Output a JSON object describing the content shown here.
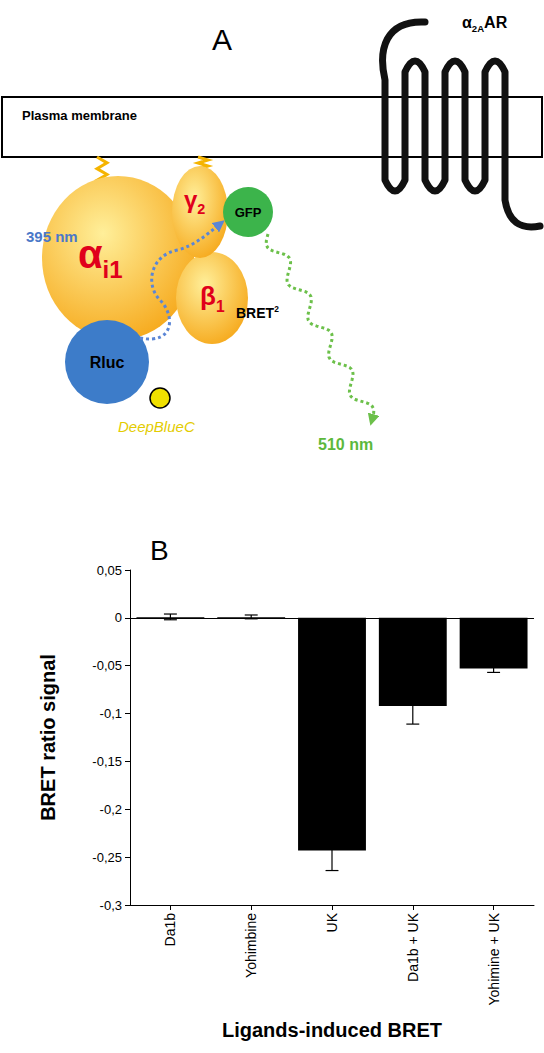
{
  "diagram": {
    "panel": "A",
    "receptor": {
      "base": "α",
      "sub": "2A",
      "rest": "AR"
    },
    "membrane": "Plasma membrane",
    "alpha": {
      "base": "α",
      "sub": "i1"
    },
    "gamma": {
      "base": "γ",
      "sub": "2"
    },
    "beta": {
      "base": "β",
      "sub": "1"
    },
    "gfp": "GFP",
    "rluc": "Rluc",
    "substrate": "DeepBlueC",
    "excitation": "395 nm",
    "bret": {
      "base": "BRET",
      "sup": "2"
    },
    "emission": "510 nm"
  },
  "chart_data": {
    "type": "bar",
    "panel": "B",
    "y_label": "BRET ratio signal",
    "x_label": "Ligands-induced BRET",
    "categories": [
      "Da1b",
      "Yohimbine",
      "UK",
      "Da1b + UK",
      "Yohimine + UK"
    ],
    "values": [
      0.001,
      0.001,
      -0.243,
      -0.092,
      -0.053
    ],
    "errors": [
      0.003,
      0.002,
      0.021,
      0.019,
      0.004
    ],
    "color": "#000000",
    "ylim": [
      -0.3,
      0.05
    ],
    "yticks": [
      {
        "value": -0.3,
        "label": "-0,3"
      },
      {
        "value": -0.25,
        "label": "-0,25"
      },
      {
        "value": -0.2,
        "label": "-0,2"
      },
      {
        "value": -0.15,
        "label": "-0,15"
      },
      {
        "value": -0.1,
        "label": "-0,1"
      },
      {
        "value": -0.05,
        "label": "-0,05"
      },
      0,
      {
        "value": 0.05,
        "label": "0,05"
      }
    ],
    "grid": false
  }
}
